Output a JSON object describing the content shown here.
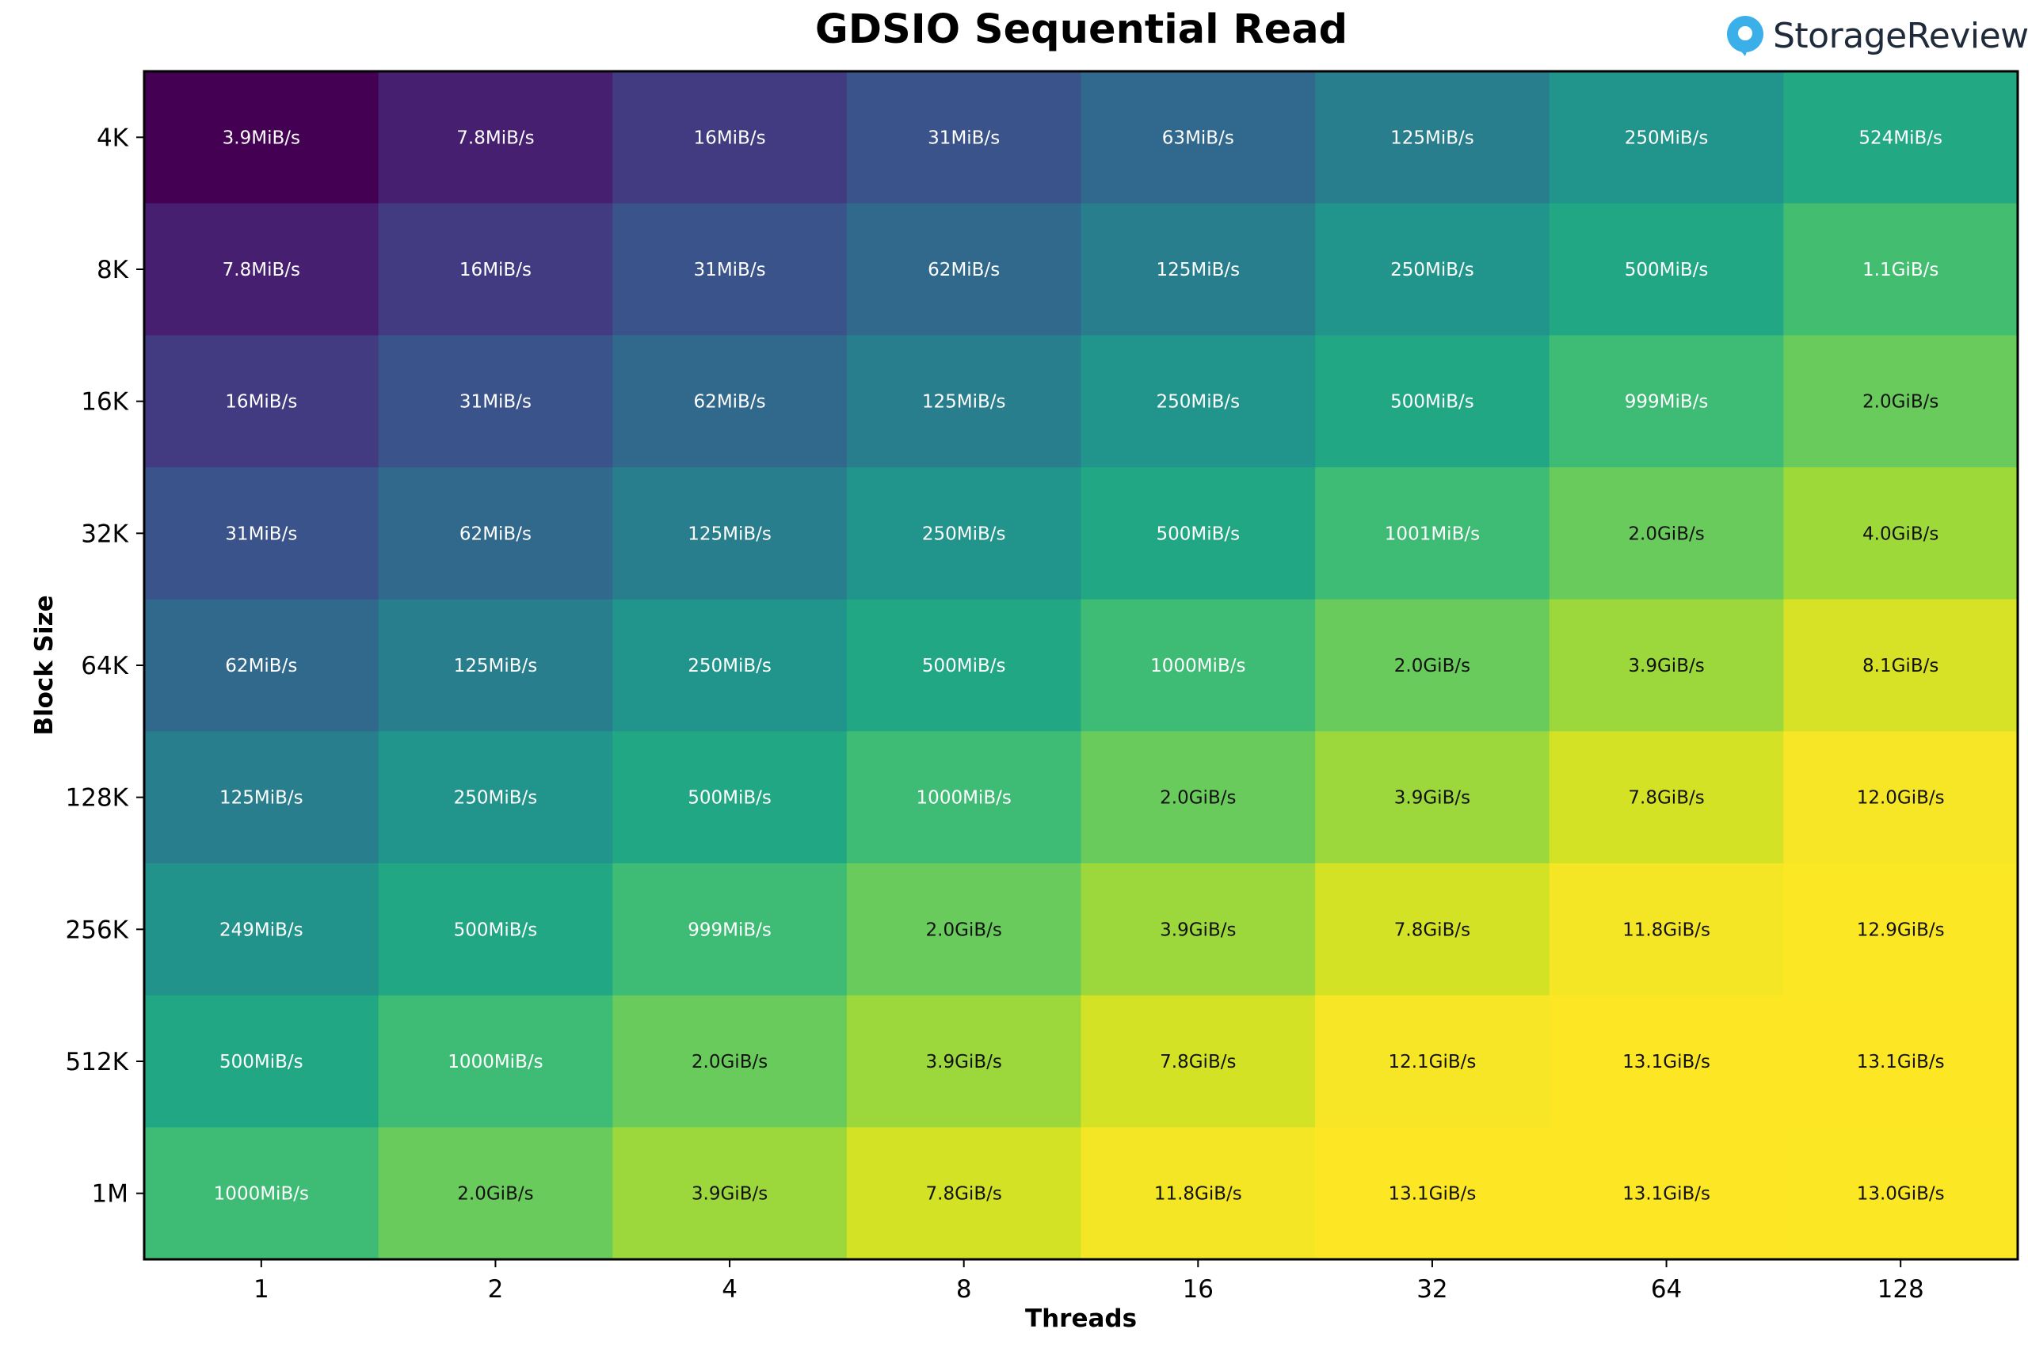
{
  "chart_data": {
    "type": "heatmap",
    "title": "GDSIO Sequential Read",
    "xlabel": "Threads",
    "ylabel": "Block Size",
    "x": [
      "1",
      "2",
      "4",
      "8",
      "16",
      "32",
      "64",
      "128"
    ],
    "y": [
      "4K",
      "8K",
      "16K",
      "32K",
      "64K",
      "128K",
      "256K",
      "512K",
      "1M"
    ],
    "colormap": "viridis",
    "values_gib_s": [
      [
        0.0038,
        0.0076,
        0.0156,
        0.0303,
        0.0615,
        0.122,
        0.244,
        0.512
      ],
      [
        0.0076,
        0.0156,
        0.0303,
        0.0605,
        0.122,
        0.244,
        0.488,
        1.1
      ],
      [
        0.0156,
        0.0303,
        0.0605,
        0.122,
        0.244,
        0.488,
        0.976,
        2.0
      ],
      [
        0.0303,
        0.0605,
        0.122,
        0.244,
        0.488,
        0.978,
        2.0,
        4.0
      ],
      [
        0.0605,
        0.122,
        0.244,
        0.488,
        0.977,
        2.0,
        3.9,
        8.1
      ],
      [
        0.122,
        0.244,
        0.488,
        0.977,
        2.0,
        3.9,
        7.8,
        12.0
      ],
      [
        0.243,
        0.488,
        0.976,
        2.0,
        3.9,
        7.8,
        11.8,
        12.9
      ],
      [
        0.488,
        0.977,
        2.0,
        3.9,
        7.8,
        12.1,
        13.1,
        13.1
      ],
      [
        0.977,
        2.0,
        3.9,
        7.8,
        11.8,
        13.1,
        13.1,
        13.0
      ]
    ],
    "labels": [
      [
        "3.9MiB/s",
        "7.8MiB/s",
        "16MiB/s",
        "31MiB/s",
        "63MiB/s",
        "125MiB/s",
        "250MiB/s",
        "524MiB/s"
      ],
      [
        "7.8MiB/s",
        "16MiB/s",
        "31MiB/s",
        "62MiB/s",
        "125MiB/s",
        "250MiB/s",
        "500MiB/s",
        "1.1GiB/s"
      ],
      [
        "16MiB/s",
        "31MiB/s",
        "62MiB/s",
        "125MiB/s",
        "250MiB/s",
        "500MiB/s",
        "999MiB/s",
        "2.0GiB/s"
      ],
      [
        "31MiB/s",
        "62MiB/s",
        "125MiB/s",
        "250MiB/s",
        "500MiB/s",
        "1001MiB/s",
        "2.0GiB/s",
        "4.0GiB/s"
      ],
      [
        "62MiB/s",
        "125MiB/s",
        "250MiB/s",
        "500MiB/s",
        "1000MiB/s",
        "2.0GiB/s",
        "3.9GiB/s",
        "8.1GiB/s"
      ],
      [
        "125MiB/s",
        "250MiB/s",
        "500MiB/s",
        "1000MiB/s",
        "2.0GiB/s",
        "3.9GiB/s",
        "7.8GiB/s",
        "12.0GiB/s"
      ],
      [
        "249MiB/s",
        "500MiB/s",
        "999MiB/s",
        "2.0GiB/s",
        "3.9GiB/s",
        "7.8GiB/s",
        "11.8GiB/s",
        "12.9GiB/s"
      ],
      [
        "500MiB/s",
        "1000MiB/s",
        "2.0GiB/s",
        "3.9GiB/s",
        "7.8GiB/s",
        "12.1GiB/s",
        "13.1GiB/s",
        "13.1GiB/s"
      ],
      [
        "1000MiB/s",
        "2.0GiB/s",
        "3.9GiB/s",
        "7.8GiB/s",
        "11.8GiB/s",
        "13.1GiB/s",
        "13.1GiB/s",
        "13.0GiB/s"
      ]
    ],
    "grid": false,
    "legend": "none"
  },
  "logo": {
    "text": "StorageReview",
    "icon": "storagereview-logo-icon",
    "icon_color": "#3bb0e8"
  }
}
